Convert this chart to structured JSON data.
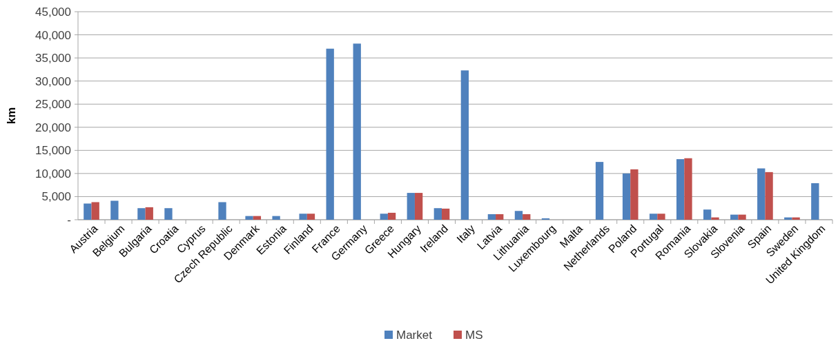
{
  "chart_data": {
    "type": "bar",
    "ylabel": "km",
    "categories": [
      "Austria",
      "Belgium",
      "Bulgaria",
      "Croatia",
      "Cyprus",
      "Czech Republic",
      "Denmark",
      "Estonia",
      "Finland",
      "France",
      "Germany",
      "Greece",
      "Hungary",
      "Ireland",
      "Italy",
      "Latvia",
      "Lithuania",
      "Luxembourg",
      "Malta",
      "Netherlands",
      "Poland",
      "Portugal",
      "Romania",
      "Slovakia",
      "Slovenia",
      "Spain",
      "Sweden",
      "United Kingdom"
    ],
    "series": [
      {
        "name": "Market",
        "color": "#4f81bd",
        "values": [
          3500,
          4100,
          2500,
          2500,
          null,
          3800,
          800,
          800,
          1300,
          37000,
          38100,
          1300,
          5800,
          2500,
          32300,
          1200,
          1900,
          300,
          null,
          12500,
          10000,
          1300,
          13100,
          2200,
          1100,
          11100,
          500,
          7900
        ]
      },
      {
        "name": "MS",
        "color": "#c0504d",
        "values": [
          3800,
          null,
          2700,
          null,
          null,
          null,
          800,
          null,
          1300,
          null,
          null,
          1500,
          5800,
          2400,
          null,
          1200,
          1200,
          null,
          null,
          null,
          10900,
          1300,
          13300,
          500,
          1100,
          10300,
          500,
          null
        ]
      }
    ],
    "ylim": [
      0,
      45000
    ],
    "yticks": [
      {
        "value": 0,
        "label": "-"
      },
      {
        "value": 5000,
        "label": "5,000"
      },
      {
        "value": 10000,
        "label": "10,000"
      },
      {
        "value": 15000,
        "label": "15,000"
      },
      {
        "value": 20000,
        "label": "20,000"
      },
      {
        "value": 25000,
        "label": "25,000"
      },
      {
        "value": 30000,
        "label": "30,000"
      },
      {
        "value": 35000,
        "label": "35,000"
      },
      {
        "value": 40000,
        "label": "40,000"
      },
      {
        "value": 45000,
        "label": "45,000"
      }
    ],
    "grid": "y",
    "legend": "bottom"
  }
}
